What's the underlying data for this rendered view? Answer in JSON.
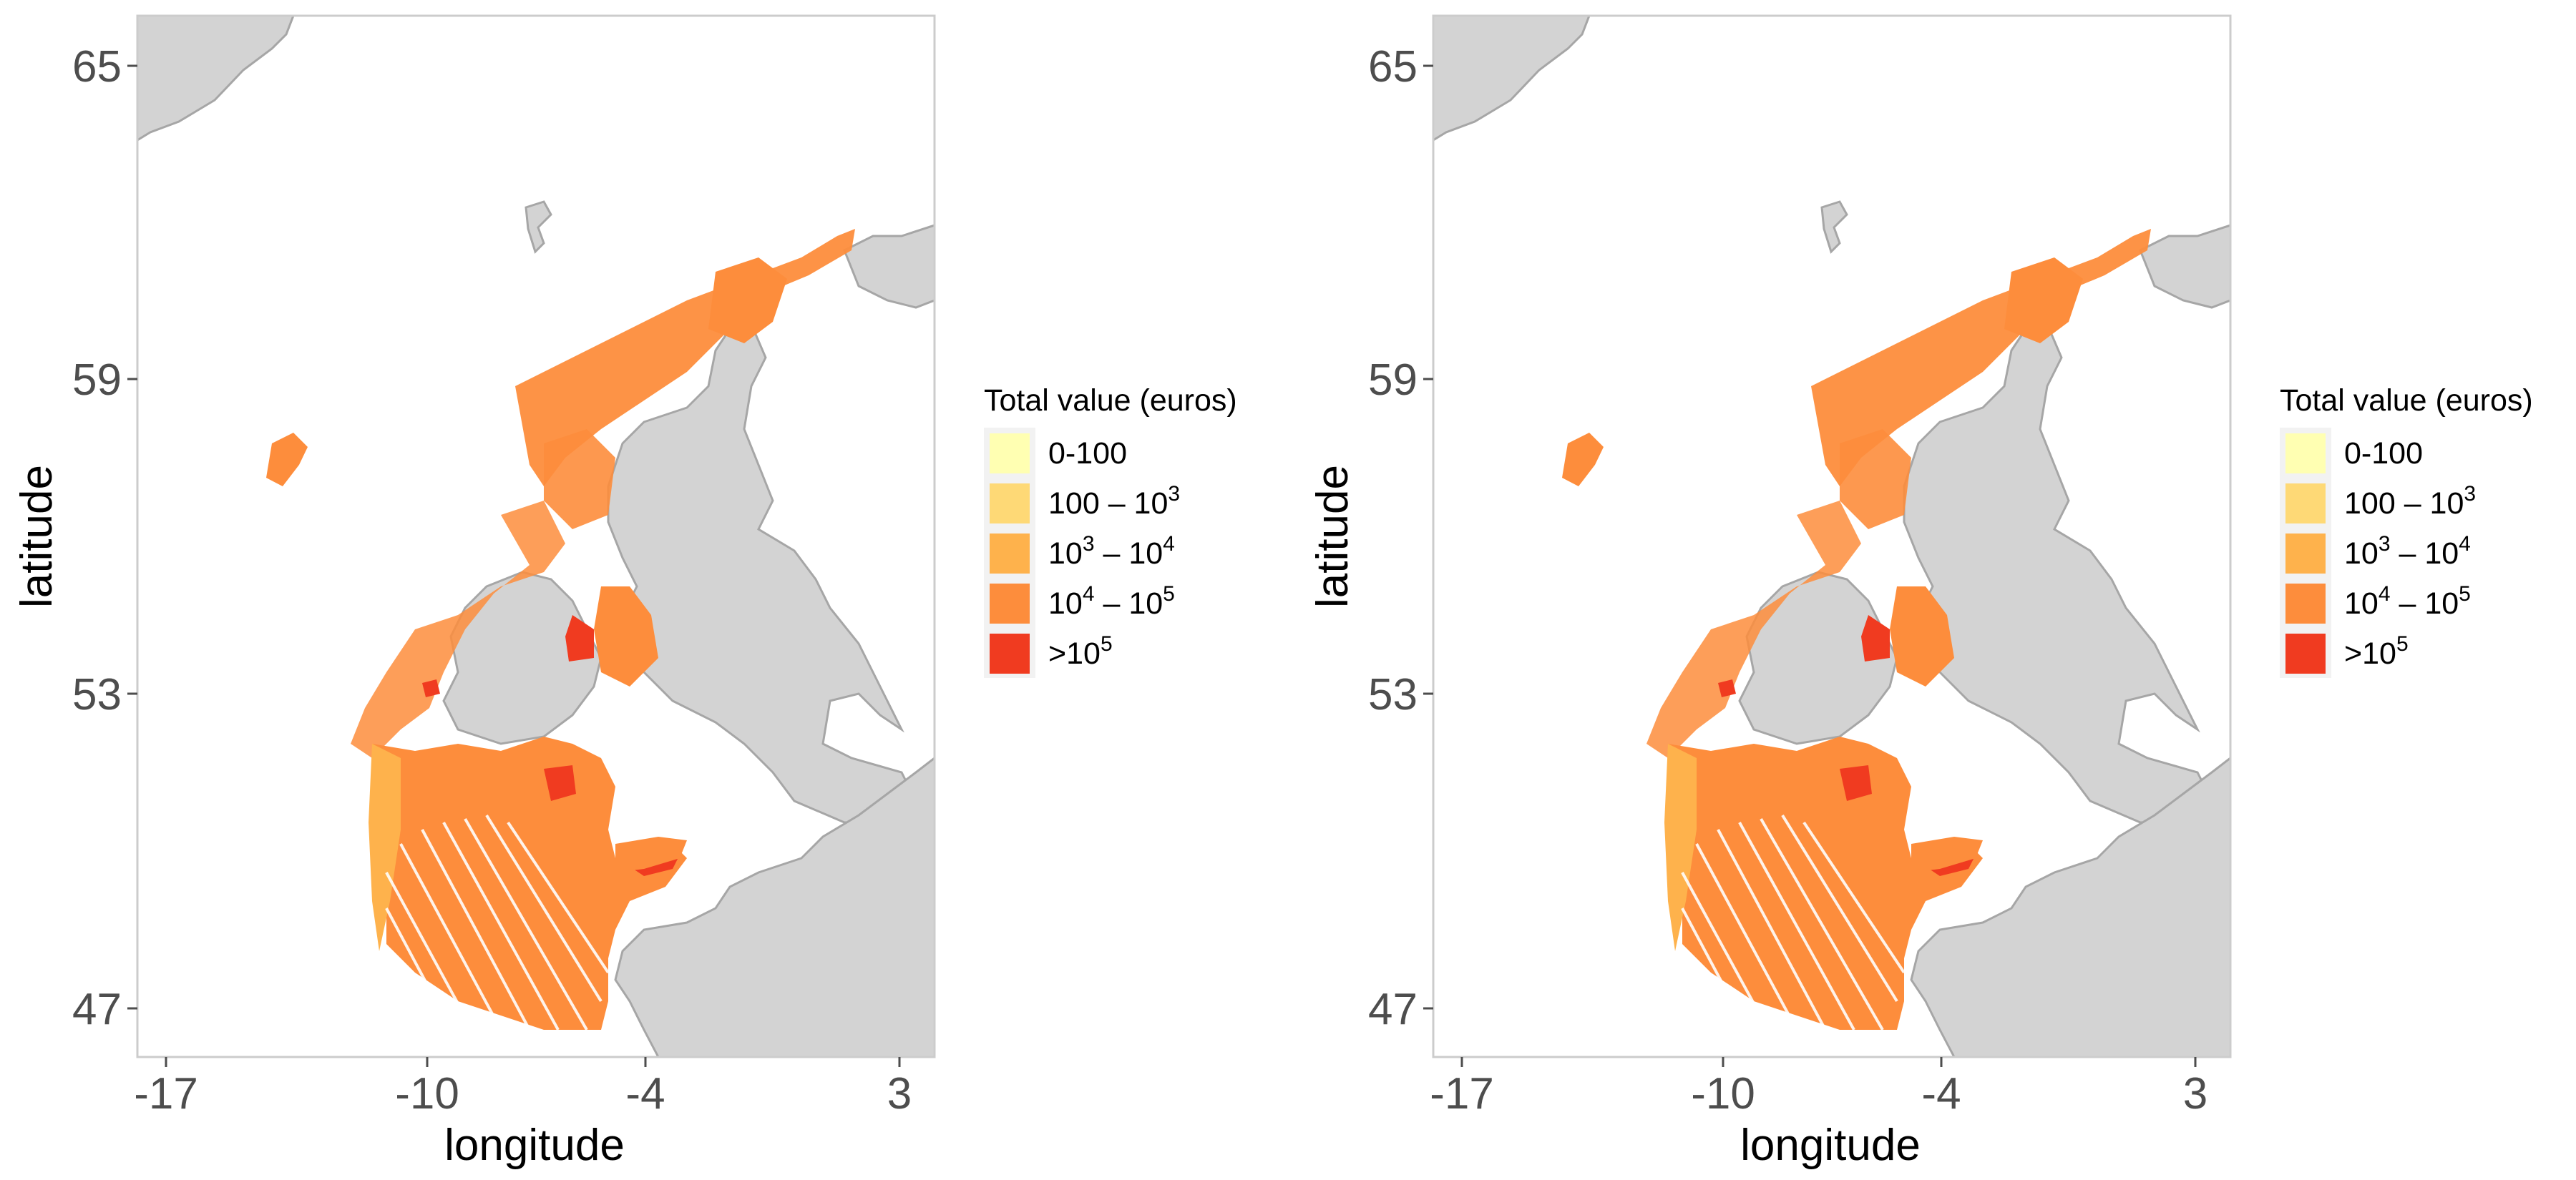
{
  "panels": [
    {
      "id": "left",
      "x_axis": {
        "title": "longitude",
        "ticks": [
          "-17",
          "-10",
          "-4",
          "3"
        ]
      },
      "y_axis": {
        "title": "latitude",
        "ticks": [
          "65",
          "59",
          "53",
          "47"
        ]
      },
      "legend": {
        "title": "Total value (euros)",
        "items": [
          {
            "base": "0-100",
            "color": "#ffffb2"
          },
          {
            "base": "100 – 10",
            "sup": "3",
            "color": "#fed976"
          },
          {
            "base": "10",
            "sup": "3",
            "mid": " – 10",
            "sup2": "4",
            "color": "#feb24c"
          },
          {
            "base": "10",
            "sup": "4",
            "mid": " – 10",
            "sup2": "5",
            "color": "#fd8d3c"
          },
          {
            "base": ">10",
            "sup": "5",
            "color": "#f03b20"
          }
        ]
      }
    },
    {
      "id": "right",
      "x_axis": {
        "title": "longitude",
        "ticks": [
          "-17",
          "-10",
          "-4",
          "3"
        ]
      },
      "y_axis": {
        "title": "latitude",
        "ticks": [
          "65",
          "59",
          "53",
          "47"
        ]
      },
      "legend": {
        "title": "Total value (euros)",
        "items": [
          {
            "base": "0-100",
            "color": "#ffffb2"
          },
          {
            "base": "100 – 10",
            "sup": "3",
            "color": "#fed976"
          },
          {
            "base": "10",
            "sup": "3",
            "mid": " – 10",
            "sup2": "4",
            "color": "#feb24c"
          },
          {
            "base": "10",
            "sup": "4",
            "mid": " – 10",
            "sup2": "5",
            "color": "#fd8d3c"
          },
          {
            "base": ">10",
            "sup": "5",
            "color": "#f03b20"
          }
        ]
      }
    }
  ],
  "colors": {
    "land": "#d3d3d3",
    "coast": "#a6a6a6",
    "panel_border": "#cccccc",
    "legend_bg": "#f2f2f2"
  }
}
